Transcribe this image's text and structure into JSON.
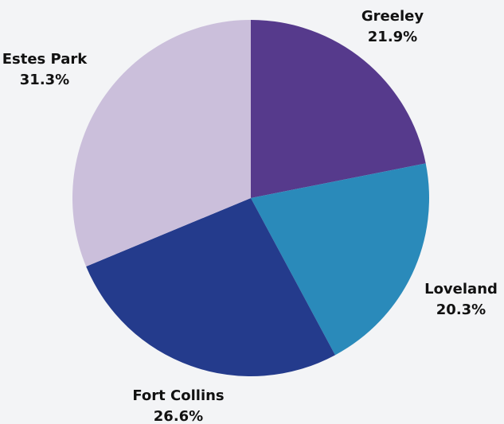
{
  "chart_data": {
    "type": "pie",
    "title": "",
    "start_angle_deg": 0,
    "direction": "clockwise",
    "slices": [
      {
        "label": "Greeley",
        "value": 21.9,
        "value_text": "21.9%",
        "color": "#563a8c"
      },
      {
        "label": "Loveland",
        "value": 20.3,
        "value_text": "20.3%",
        "color": "#2a8aba"
      },
      {
        "label": "Fort Collins",
        "value": 26.6,
        "value_text": "26.6%",
        "color": "#243b8c"
      },
      {
        "label": "Estes Park",
        "value": 31.3,
        "value_text": "31.3%",
        "color": "#cbbfdb"
      }
    ]
  }
}
